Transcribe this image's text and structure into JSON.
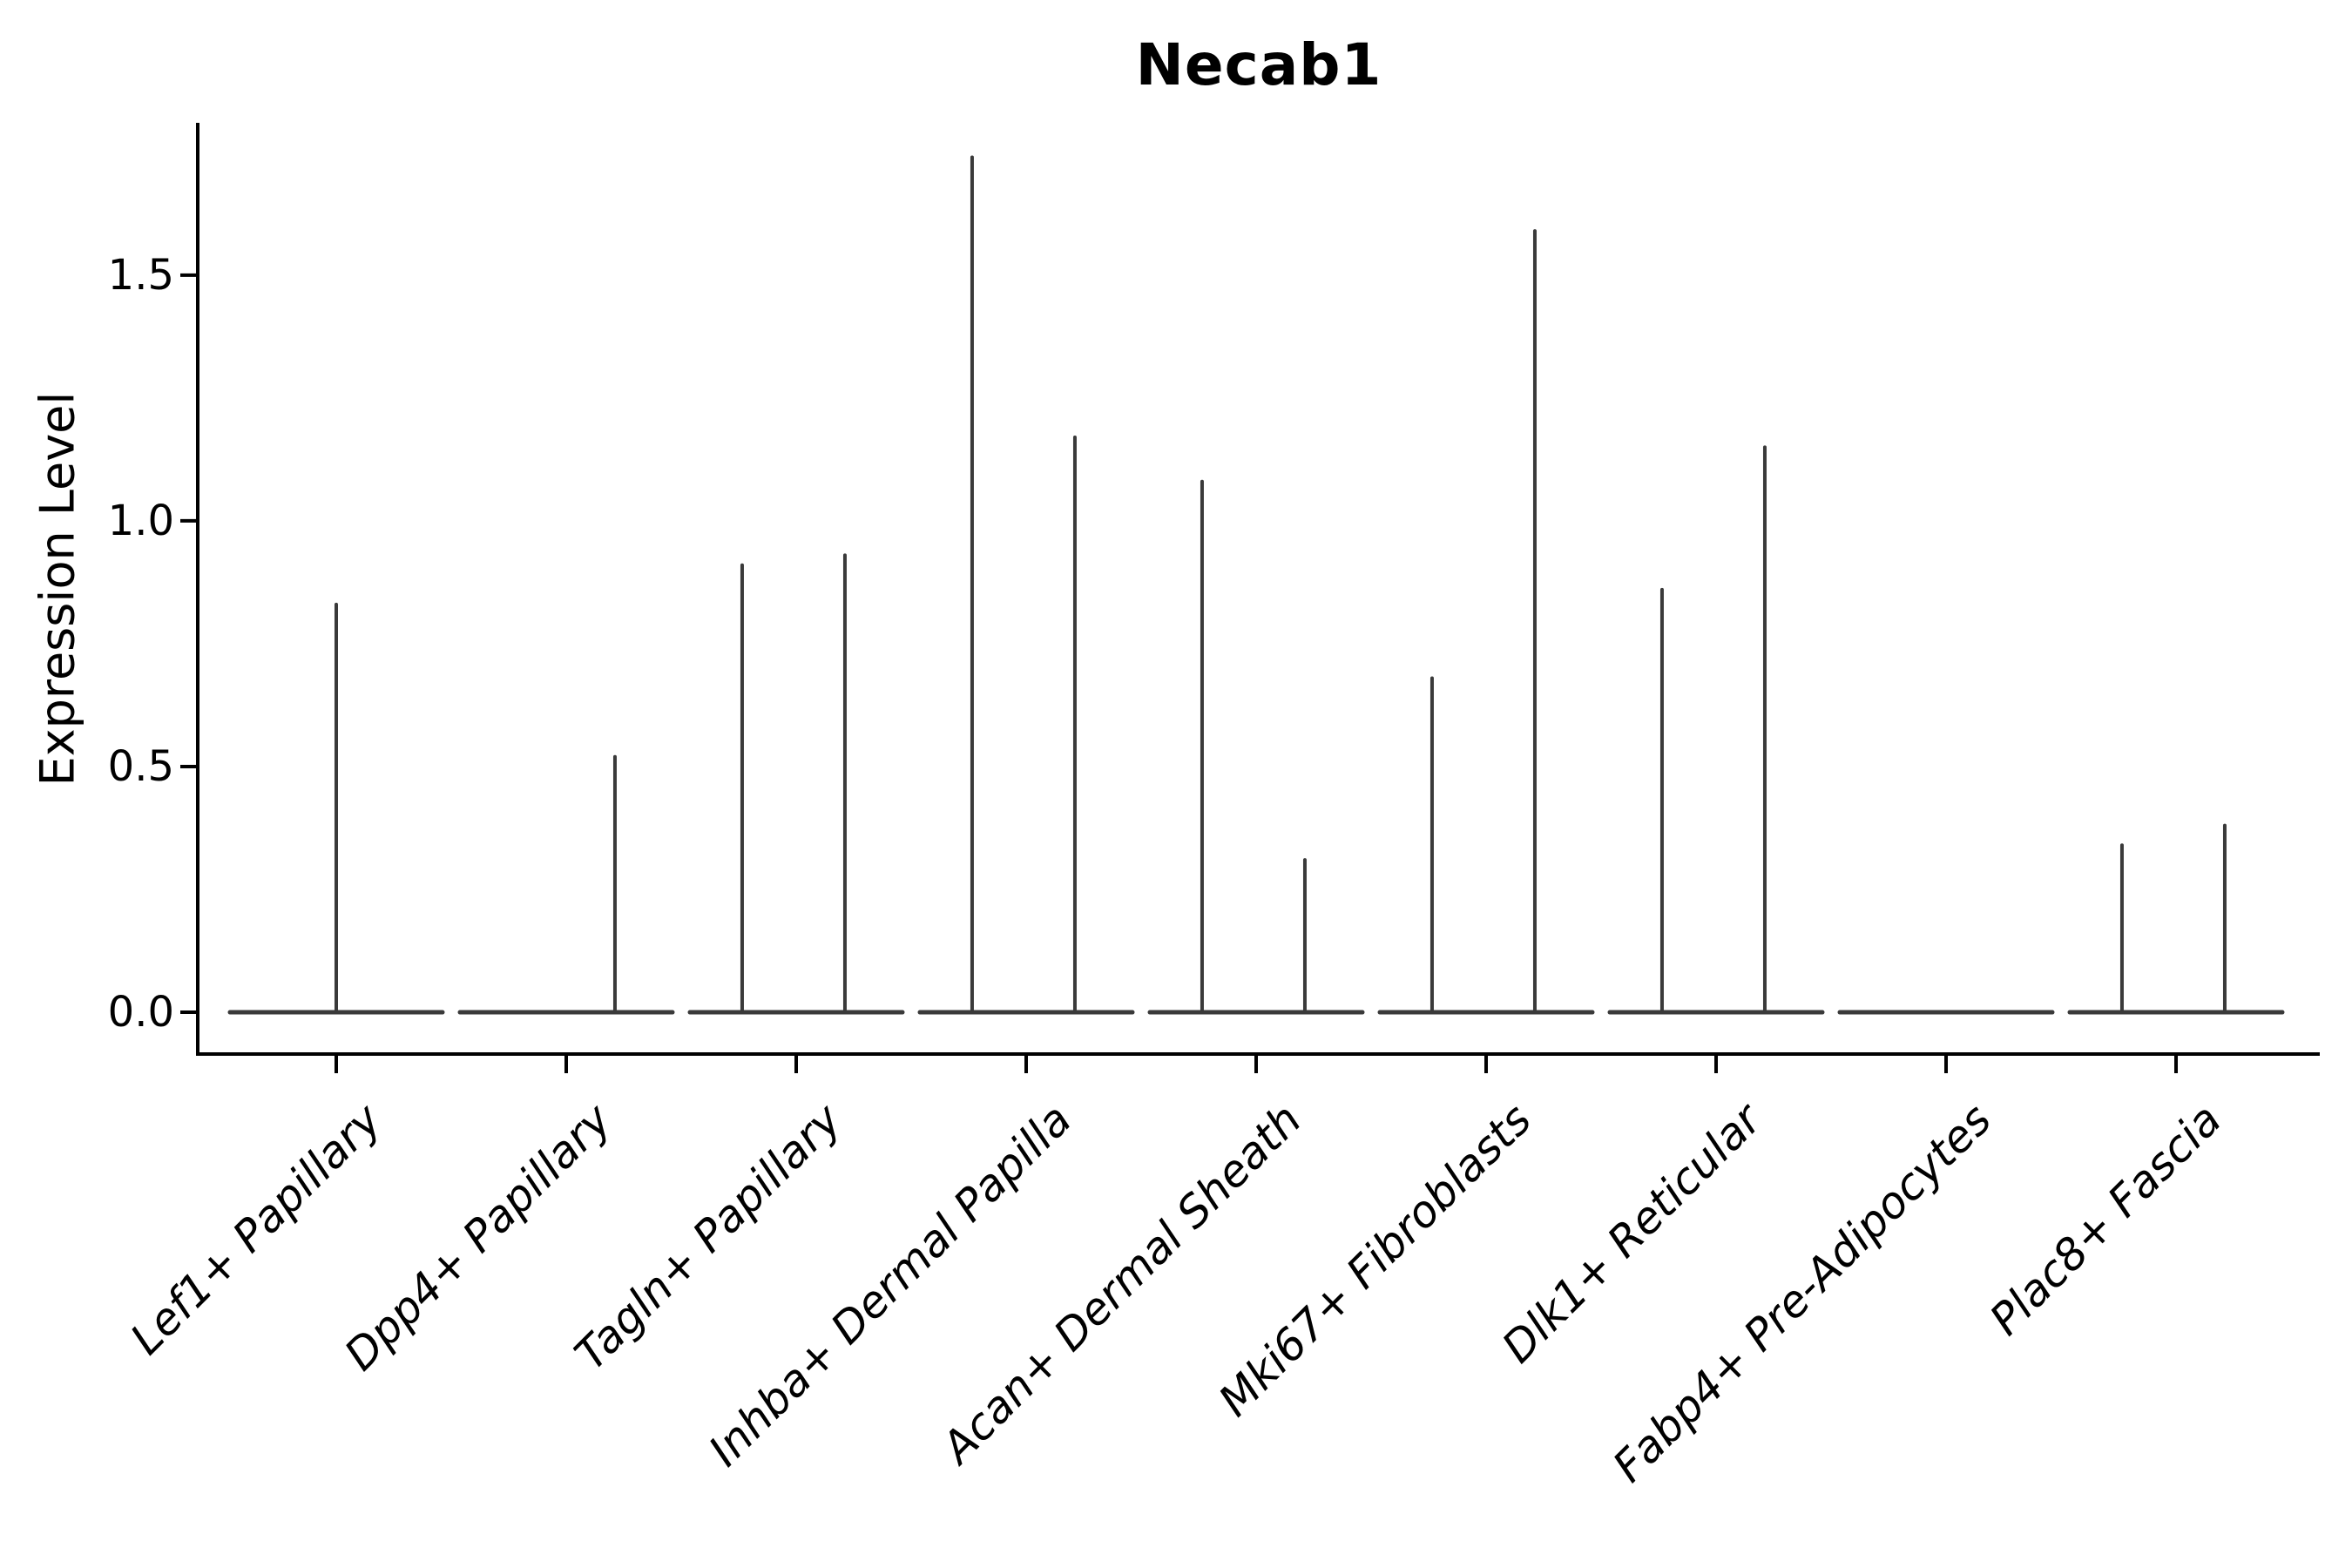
{
  "title": "Necab1",
  "chart_data": {
    "type": "violin",
    "title": "Necab1",
    "xlabel": "",
    "ylabel": "Expression Level",
    "yticks": [
      0.0,
      0.5,
      1.0,
      1.5
    ],
    "ytick_labels": [
      "0.0",
      "0.5",
      "1.0",
      "1.5"
    ],
    "ylim": [
      -0.085,
      1.81
    ],
    "grid": false,
    "legend_position": "none",
    "x_label_rotation_deg": 45,
    "x_label_style": "italic",
    "categories": [
      "Lef1+ Papillary",
      "Dpp4+ Papillary",
      "Tagln+ Papillary",
      "Inhba+ Dermal Papilla",
      "Acan+ Dermal Sheath",
      "Mki67+ Fibroblasts",
      "Dlk1+ Reticular",
      "Fabp4+ Pre-Adipocytes",
      "Plac8+ Fascia"
    ],
    "description": "Width-collapsed violin plot of Necab1 expression per fibroblast cluster: each category shows a flat density bar at expression 0 plus thin vertical density spikes reaching the maximum expression of rare expressing cells. Offset is the spike center position in category-width units relative to the category tick.",
    "violins": [
      {
        "category": "Lef1+ Papillary",
        "zero_bar": true,
        "spikes": [
          {
            "offset": 0.0,
            "max": 0.83
          }
        ]
      },
      {
        "category": "Dpp4+ Papillary",
        "zero_bar": true,
        "spikes": [
          {
            "offset": 0.212,
            "max": 0.52
          }
        ]
      },
      {
        "category": "Tagln+ Papillary",
        "zero_bar": true,
        "spikes": [
          {
            "offset": -0.235,
            "max": 0.91
          },
          {
            "offset": 0.212,
            "max": 0.93
          }
        ]
      },
      {
        "category": "Inhba+ Dermal Papilla",
        "zero_bar": true,
        "spikes": [
          {
            "offset": -0.235,
            "max": 1.74
          },
          {
            "offset": 0.212,
            "max": 1.17
          }
        ]
      },
      {
        "category": "Acan+ Dermal Sheath",
        "zero_bar": true,
        "spikes": [
          {
            "offset": -0.235,
            "max": 1.08
          },
          {
            "offset": 0.212,
            "max": 0.31
          }
        ]
      },
      {
        "category": "Mki67+ Fibroblasts",
        "zero_bar": true,
        "spikes": [
          {
            "offset": -0.235,
            "max": 0.68
          },
          {
            "offset": 0.212,
            "max": 1.59
          }
        ]
      },
      {
        "category": "Dlk1+ Reticular",
        "zero_bar": true,
        "spikes": [
          {
            "offset": -0.235,
            "max": 0.86
          },
          {
            "offset": 0.212,
            "max": 1.15
          }
        ]
      },
      {
        "category": "Fabp4+ Pre-Adipocytes",
        "zero_bar": true,
        "spikes": []
      },
      {
        "category": "Plac8+ Fascia",
        "zero_bar": true,
        "spikes": [
          {
            "offset": -0.235,
            "max": 0.34
          },
          {
            "offset": 0.212,
            "max": 0.38
          }
        ]
      }
    ],
    "colors": {
      "violin_line": "#3a3a3a",
      "axis": "#000000",
      "text": "#000000",
      "background": "#ffffff"
    }
  }
}
